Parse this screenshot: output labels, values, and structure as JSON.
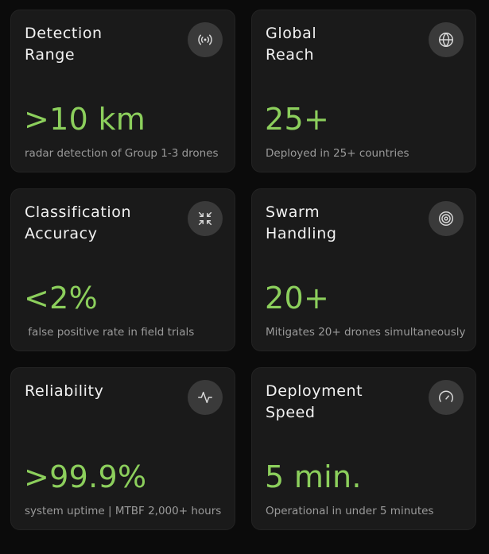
{
  "cards": [
    {
      "title_line1": "Detection",
      "title_line2": "Range",
      "value": ">10 km",
      "caption": "radar detection of Group 1-3 drones",
      "icon": "radar-signal-icon"
    },
    {
      "title_line1": "Global",
      "title_line2": "Reach",
      "value": "25+",
      "caption": "Deployed in 25+ countries",
      "icon": "globe-icon"
    },
    {
      "title_line1": "Classification",
      "title_line2": "Accuracy",
      "value": "<2%",
      "caption": " false positive rate in field trials",
      "icon": "collapse-arrows-icon"
    },
    {
      "title_line1": "Swarm",
      "title_line2": "Handling",
      "value": "20+",
      "caption": "Mitigates 20+ drones simultaneously",
      "icon": "target-icon"
    },
    {
      "title_line1": "Reliability",
      "title_line2": "",
      "value": ">99.9%",
      "caption": "system uptime | MTBF 2,000+ hours",
      "icon": "pulse-icon"
    },
    {
      "title_line1": "Deployment",
      "title_line2": "Speed",
      "value": "5 min.",
      "caption": "Operational in under 5 minutes",
      "icon": "speedometer-icon"
    }
  ],
  "colors": {
    "background": "#0b0b0b",
    "card": "#1a1a1a",
    "accent": "#8ccf5c",
    "title": "#f2f2f2",
    "caption": "#9a9a9a",
    "icon_badge": "#3a3a3a"
  }
}
